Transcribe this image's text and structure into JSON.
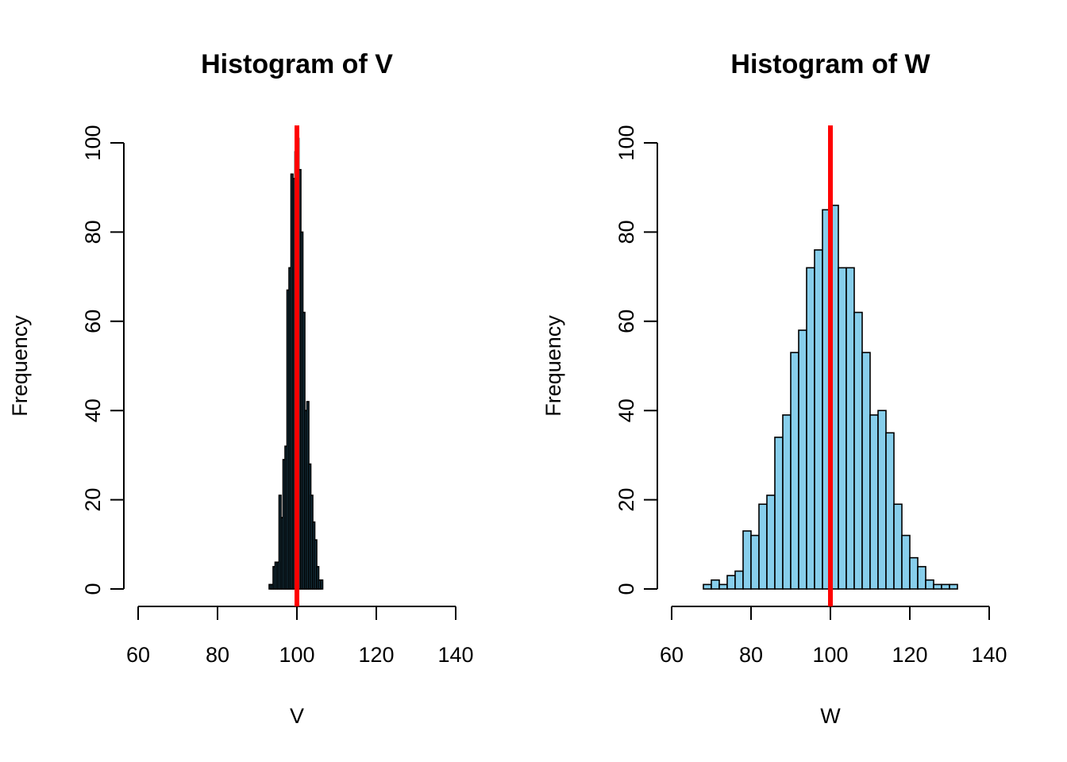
{
  "chart_data": [
    {
      "id": "v",
      "type": "bar",
      "title": "Histogram of V",
      "xlabel": "V",
      "ylabel": "Frequency",
      "xlim": [
        60,
        140
      ],
      "ylim": [
        0,
        100
      ],
      "xticks": [
        60,
        80,
        100,
        120,
        140
      ],
      "yticks": [
        0,
        20,
        40,
        60,
        80,
        100
      ],
      "bar_color": "#1f4a5e",
      "bin_width": 0.5,
      "bins_start": [
        93,
        93.5,
        94,
        94.5,
        95,
        95.5,
        96,
        96.5,
        97,
        97.5,
        98,
        98.5,
        99,
        99.5,
        100,
        100.5,
        101,
        101.5,
        102,
        102.5,
        103,
        103.5,
        104,
        104.5,
        105,
        105.5,
        106
      ],
      "values": [
        1,
        1,
        5,
        6,
        6,
        21,
        16,
        29,
        32,
        67,
        72,
        93,
        92,
        98,
        101,
        94,
        80,
        62,
        40,
        42,
        28,
        21,
        15,
        11,
        5,
        2,
        2
      ],
      "vline": {
        "x": 100,
        "color": "#ff0000"
      }
    },
    {
      "id": "w",
      "type": "bar",
      "title": "Histogram of W",
      "xlabel": "W",
      "ylabel": "Frequency",
      "xlim": [
        60,
        140
      ],
      "ylim": [
        0,
        100
      ],
      "xticks": [
        60,
        80,
        100,
        120,
        140
      ],
      "yticks": [
        0,
        20,
        40,
        60,
        80,
        100
      ],
      "bar_color": "#87ceeb",
      "bin_width": 2,
      "bins_start": [
        68,
        70,
        72,
        74,
        76,
        78,
        80,
        82,
        84,
        86,
        88,
        90,
        92,
        94,
        96,
        98,
        100,
        102,
        104,
        106,
        108,
        110,
        112,
        114,
        116,
        118,
        120,
        122,
        124,
        126,
        128,
        130
      ],
      "values": [
        1,
        2,
        1,
        3,
        4,
        13,
        12,
        19,
        21,
        34,
        39,
        53,
        58,
        72,
        76,
        85,
        86,
        72,
        72,
        62,
        53,
        39,
        40,
        35,
        19,
        12,
        7,
        5,
        2,
        1,
        1,
        1
      ],
      "vline": {
        "x": 100,
        "color": "#ff0000"
      }
    }
  ]
}
